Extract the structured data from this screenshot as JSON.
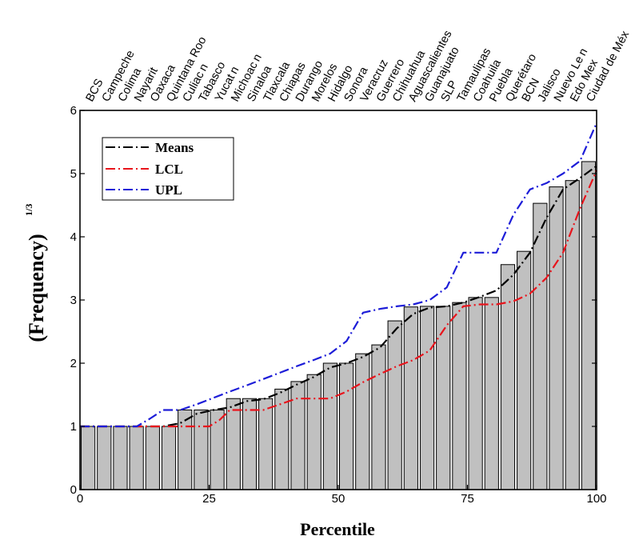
{
  "chart_data": {
    "type": "bar",
    "xlabel": "Percentile",
    "ylabel": "(Frequency)",
    "ylabel_exponent": "1/3",
    "xlim": [
      0,
      100
    ],
    "ylim": [
      0,
      6
    ],
    "xticks": [
      "0",
      "25",
      "50",
      "75",
      "100"
    ],
    "yticks": [
      "0",
      "1",
      "2",
      "3",
      "4",
      "5",
      "6"
    ],
    "categories": [
      "BCS",
      "Campeche",
      "Colima",
      "Nayarit",
      "Oaxaca",
      "Quintana Roo",
      "Culiacán",
      "Tabasco",
      "Yucatán",
      "Michoacán",
      "Sinaloa",
      "Tlaxcala",
      "Chiapas",
      "Durango",
      "Morelos",
      "Hidalgo",
      "Sonora",
      "Veracruz",
      "Guerrero",
      "Chihuahua",
      "Aguascalientes",
      "Guanajuato",
      "SLP",
      "Tamaulipas",
      "Coahuila",
      "Puebla",
      "Querétaro",
      "BCN",
      "Jalisco",
      "Nuevo León",
      "Edo Mex",
      "Ciudad de México"
    ],
    "category_labels_display": [
      "BCS",
      "Campeche",
      "Colima",
      "Nayarit",
      "Oaxaca",
      "Quintana Roo",
      "Culiac n",
      "Tabasco",
      "Yucat n",
      "Michoac n",
      "Sinaloa",
      "Tlaxcala",
      "Chiapas",
      "Durango",
      "Morelos",
      "Hidalgo",
      "Sonora",
      "Veracruz",
      "Guerrero",
      "Chihuahua",
      "Aguascalientes",
      "Guanajuato",
      "SLP",
      "Tamaulipas",
      "Coahuila",
      "Puebla",
      "Querétaro",
      "BCN",
      "Jalisco",
      "Nuevo Le n",
      "Edo Mex",
      "Ciudad de Méx"
    ],
    "bar_values": [
      1.0,
      1.0,
      1.0,
      1.0,
      1.0,
      1.0,
      1.26,
      1.26,
      1.26,
      1.44,
      1.44,
      1.44,
      1.59,
      1.71,
      1.82,
      2.0,
      2.0,
      2.15,
      2.29,
      2.67,
      2.89,
      2.9,
      2.9,
      2.96,
      3.04,
      3.04,
      3.56,
      3.77,
      4.53,
      4.79,
      4.89,
      5.19
    ],
    "series": [
      {
        "name": "Means",
        "color": "#000000",
        "style": "dash-dot",
        "x": [
          0,
          3.2,
          6.5,
          9.7,
          12.9,
          16.1,
          19.4,
          22.6,
          25.8,
          29.0,
          32.3,
          35.5,
          38.7,
          41.9,
          45.2,
          48.4,
          51.6,
          54.8,
          58.1,
          61.3,
          64.5,
          67.7,
          71.0,
          74.2,
          77.4,
          80.6,
          83.9,
          87.1,
          90.3,
          93.5,
          96.8,
          100
        ],
        "values": [
          1.0,
          1.0,
          1.0,
          1.0,
          1.0,
          1.0,
          1.05,
          1.2,
          1.26,
          1.3,
          1.4,
          1.43,
          1.53,
          1.66,
          1.78,
          1.93,
          2.0,
          2.1,
          2.25,
          2.55,
          2.78,
          2.88,
          2.9,
          2.96,
          3.05,
          3.15,
          3.4,
          3.75,
          4.3,
          4.75,
          4.93,
          5.12
        ]
      },
      {
        "name": "LCL",
        "color": "#e8141c",
        "style": "dash-dot",
        "x": [
          0,
          6.5,
          12.9,
          19.4,
          25.0,
          27.0,
          29.0,
          32.3,
          35.5,
          38.7,
          41.9,
          45.2,
          48.4,
          51.6,
          54.8,
          58.1,
          61.3,
          64.5,
          67.7,
          71.0,
          74.2,
          77.4,
          80.6,
          83.9,
          87.1,
          90.3,
          93.5,
          96.8,
          100
        ],
        "values": [
          1.0,
          1.0,
          1.0,
          1.0,
          1.0,
          1.1,
          1.26,
          1.26,
          1.26,
          1.35,
          1.44,
          1.44,
          1.44,
          1.55,
          1.7,
          1.83,
          1.95,
          2.05,
          2.2,
          2.6,
          2.9,
          2.93,
          2.93,
          2.98,
          3.1,
          3.35,
          3.75,
          4.45,
          5.05
        ]
      },
      {
        "name": "UPL",
        "color": "#1d1dd8",
        "style": "dash-dot",
        "x": [
          0,
          6.5,
          11.0,
          13.5,
          16.1,
          19.4,
          22.6,
          25.8,
          29.0,
          32.3,
          35.5,
          38.7,
          41.9,
          45.2,
          48.4,
          51.6,
          54.8,
          58.1,
          61.3,
          64.5,
          67.7,
          71.0,
          74.2,
          77.4,
          80.6,
          83.9,
          87.1,
          90.3,
          93.5,
          96.8,
          100
        ],
        "values": [
          1.0,
          1.0,
          1.0,
          1.12,
          1.26,
          1.26,
          1.35,
          1.45,
          1.55,
          1.65,
          1.75,
          1.85,
          1.95,
          2.05,
          2.15,
          2.35,
          2.8,
          2.86,
          2.9,
          2.93,
          3.0,
          3.2,
          3.75,
          3.75,
          3.75,
          4.35,
          4.75,
          4.85,
          5.0,
          5.2,
          5.8
        ]
      }
    ],
    "legend": {
      "position": "top-left",
      "entries": [
        "Means",
        "LCL",
        "UPL"
      ]
    },
    "bar_fill": "#c0c0c0",
    "bar_stroke": "#000000"
  }
}
